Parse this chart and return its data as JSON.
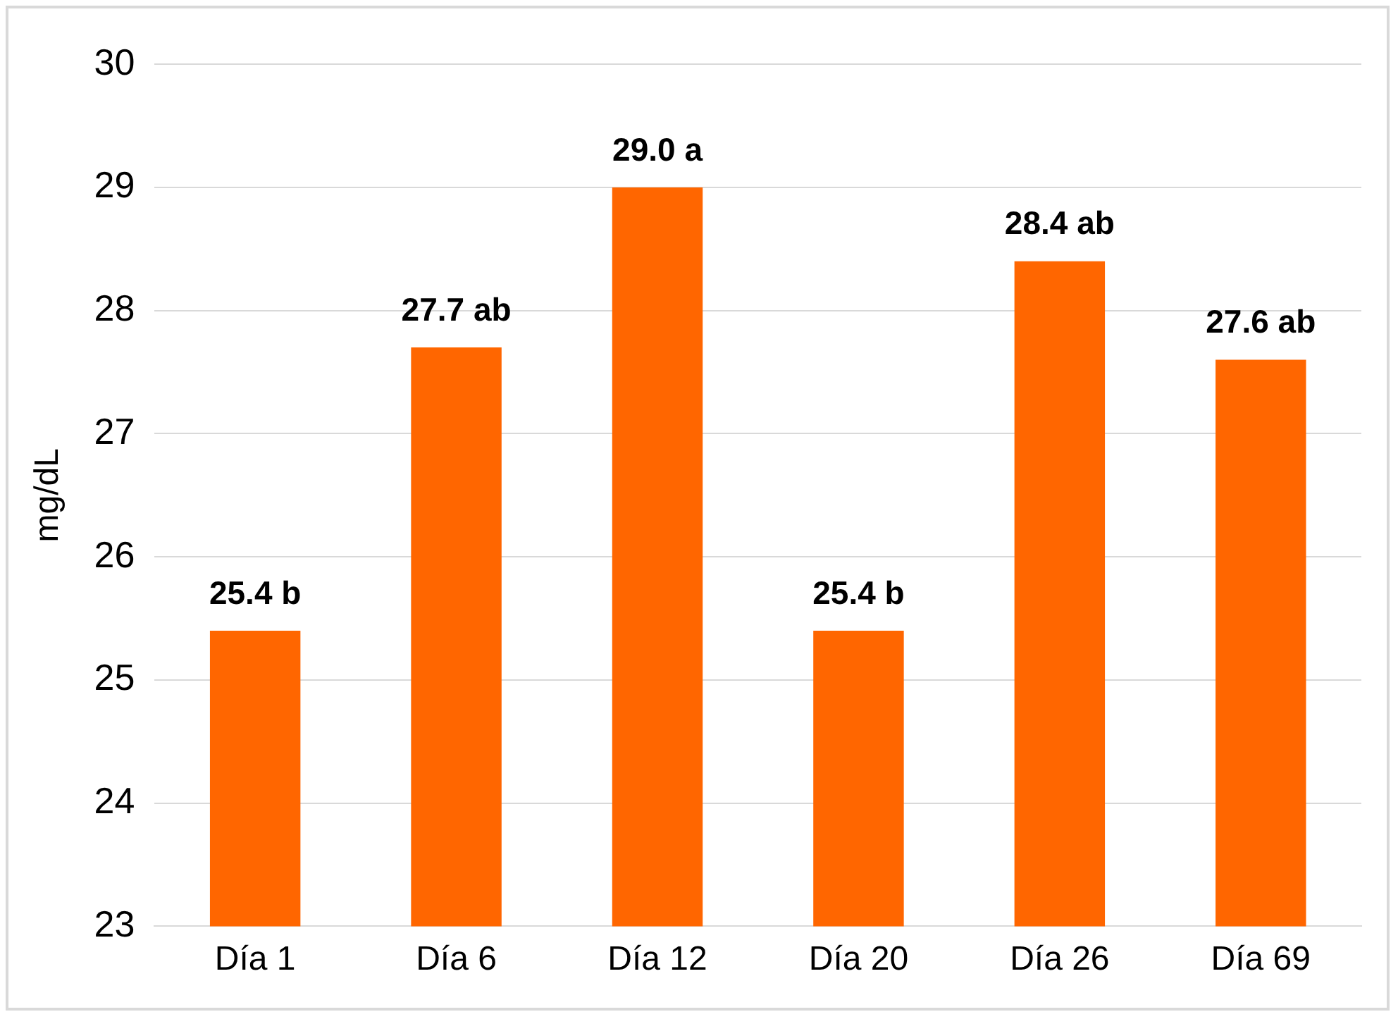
{
  "chart_data": {
    "type": "bar",
    "ylabel": "mg/dL",
    "categories": [
      "Día 1",
      "Día 6",
      "Día 12",
      "Día 20",
      "Día 26",
      "Día 69"
    ],
    "values": [
      25.4,
      27.7,
      29.0,
      25.4,
      28.4,
      27.6
    ],
    "value_labels": [
      "25.4 b",
      "27.7 ab",
      "29.0 a",
      "25.4 b",
      "28.4 ab",
      "27.6 ab"
    ],
    "color": "#ff6600",
    "ylim": [
      23,
      30
    ],
    "yticks": [
      23,
      24,
      25,
      26,
      27,
      28,
      29,
      30
    ],
    "grid": "y",
    "legend": false
  }
}
